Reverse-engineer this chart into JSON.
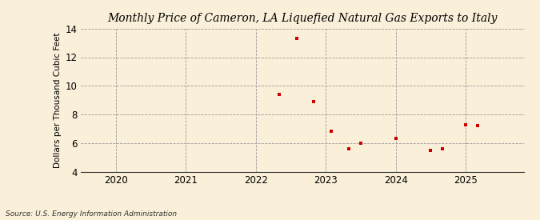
{
  "title": "Monthly Price of Cameron, LA Liquefied Natural Gas Exports to Italy",
  "ylabel": "Dollars per Thousand Cubic Feet",
  "source": "Source: U.S. Energy Information Administration",
  "background_color": "#faefd8",
  "plot_background_color": "#faefd8",
  "point_color": "#cc0000",
  "xlim": [
    2019.5,
    2025.83
  ],
  "ylim": [
    4,
    14
  ],
  "yticks": [
    4,
    6,
    8,
    10,
    12,
    14
  ],
  "xticks": [
    2020,
    2021,
    2022,
    2023,
    2024,
    2025
  ],
  "data_x": [
    2022.33,
    2022.58,
    2022.83,
    2023.08,
    2023.33,
    2023.5,
    2024.0,
    2024.5,
    2024.67,
    2025.0,
    2025.17
  ],
  "data_y": [
    9.4,
    13.3,
    8.9,
    6.8,
    5.6,
    6.0,
    6.3,
    5.5,
    5.6,
    7.3,
    7.2
  ]
}
